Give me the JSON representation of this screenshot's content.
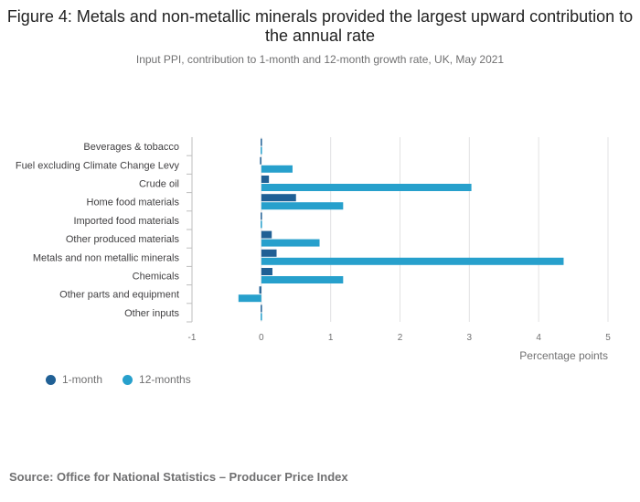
{
  "header": {
    "title": "Figure 4: Metals and non-metallic minerals provided the largest upward contribution to the annual rate",
    "subtitle": "Input PPI, contribution to 1-month and 12-month growth rate, UK, May 2021"
  },
  "colors": {
    "one_month": "#206095",
    "twelve_months": "#27a0cc",
    "grid": "#e2e2e3",
    "axis": "#bebebe"
  },
  "chart_data": {
    "type": "bar",
    "orientation": "horizontal",
    "title": "Figure 4: Metals and non-metallic minerals provided the largest upward contribution to the annual rate",
    "xlabel": "Percentage points",
    "ylabel": "",
    "xlim": [
      -1,
      5
    ],
    "xticks": [
      -1,
      0,
      1,
      2,
      3,
      4,
      5
    ],
    "categories": [
      "Beverages & tobacco",
      "Fuel excluding Climate Change Levy",
      "Crude oil",
      "Home food materials",
      "Imported food materials",
      "Other produced materials",
      "Metals and non metallic minerals",
      "Chemicals",
      "Other parts and equipment",
      "Other inputs"
    ],
    "series": [
      {
        "name": "1-month",
        "values": [
          0.0,
          -0.02,
          0.11,
          0.5,
          0.0,
          0.15,
          0.22,
          0.16,
          -0.03,
          0.0
        ]
      },
      {
        "name": "12-months",
        "values": [
          0.0,
          0.45,
          3.03,
          1.18,
          -0.01,
          0.84,
          4.36,
          1.18,
          -0.33,
          -0.01
        ]
      }
    ],
    "legend": "bottom-left",
    "grid": true
  },
  "source": "Source: Office for National Statistics – Producer Price Index"
}
